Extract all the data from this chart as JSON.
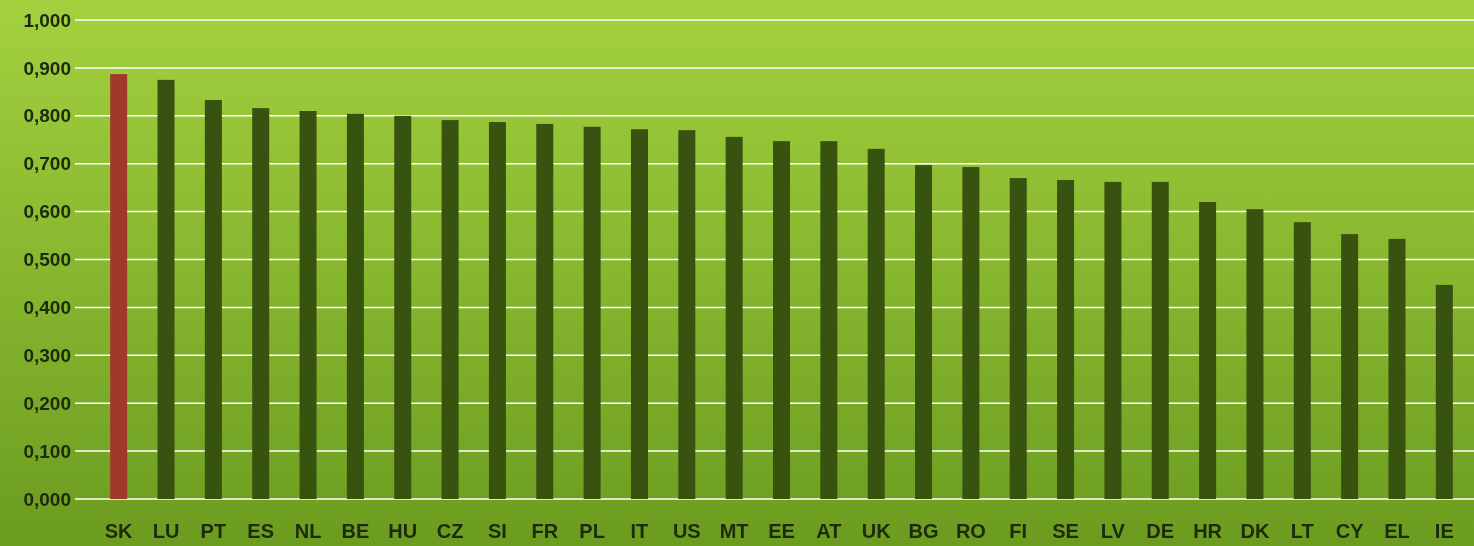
{
  "chart_data": {
    "type": "bar",
    "categories": [
      "SK",
      "LU",
      "PT",
      "ES",
      "NL",
      "BE",
      "HU",
      "CZ",
      "SI",
      "FR",
      "PL",
      "IT",
      "US",
      "MT",
      "EE",
      "AT",
      "UK",
      "BG",
      "RO",
      "FI",
      "SE",
      "LV",
      "DE",
      "HR",
      "DK",
      "LT",
      "CY",
      "EL",
      "IE"
    ],
    "values": [
      0.887,
      0.875,
      0.833,
      0.816,
      0.81,
      0.804,
      0.8,
      0.791,
      0.787,
      0.783,
      0.777,
      0.772,
      0.77,
      0.756,
      0.747,
      0.747,
      0.731,
      0.697,
      0.693,
      0.67,
      0.666,
      0.662,
      0.662,
      0.62,
      0.605,
      0.578,
      0.553,
      0.543,
      0.447
    ],
    "colors": [
      "#a0392b",
      "#38520f",
      "#38520f",
      "#38520f",
      "#38520f",
      "#38520f",
      "#38520f",
      "#38520f",
      "#38520f",
      "#38520f",
      "#38520f",
      "#38520f",
      "#38520f",
      "#38520f",
      "#38520f",
      "#38520f",
      "#38520f",
      "#38520f",
      "#38520f",
      "#38520f",
      "#38520f",
      "#38520f",
      "#38520f",
      "#38520f",
      "#38520f",
      "#38520f",
      "#38520f",
      "#38520f",
      "#38520f"
    ],
    "ylim": [
      0,
      1
    ],
    "yticks": [
      {
        "value": 0,
        "label": "0,000"
      },
      {
        "value": 0.1,
        "label": "0,100"
      },
      {
        "value": 0.2,
        "label": "0,200"
      },
      {
        "value": 0.3,
        "label": "0,300"
      },
      {
        "value": 0.4,
        "label": "0,400"
      },
      {
        "value": 0.5,
        "label": "0,500"
      },
      {
        "value": 0.6,
        "label": "0,600"
      },
      {
        "value": 0.7,
        "label": "0,700"
      },
      {
        "value": 0.8,
        "label": "0,800"
      },
      {
        "value": 0.9,
        "label": "0,900"
      },
      {
        "value": 1,
        "label": "1,000"
      }
    ],
    "grid": "y"
  }
}
